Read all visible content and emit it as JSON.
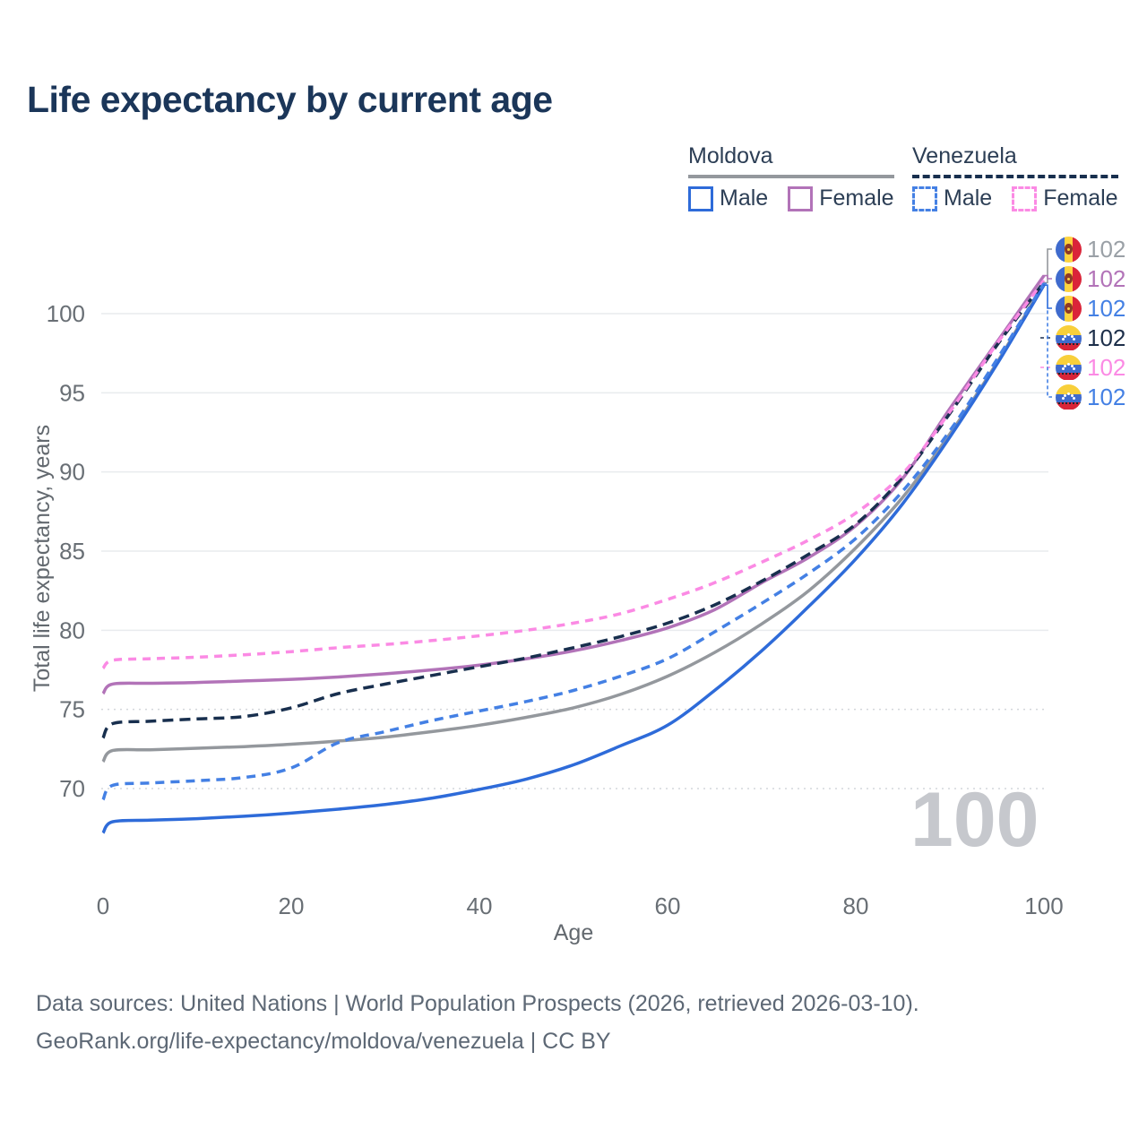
{
  "title": "Life expectancy by current age",
  "legend": {
    "groups": [
      {
        "name": "Moldova",
        "line_style": "solid",
        "underline_color": "#94989d",
        "items": [
          {
            "label": "Male",
            "color": "#2e6bd9",
            "dashed": false
          },
          {
            "label": "Female",
            "color": "#b273b8",
            "dashed": false
          }
        ]
      },
      {
        "name": "Venezuela",
        "line_style": "dashed",
        "underline_color": "#182f4e",
        "items": [
          {
            "label": "Male",
            "color": "#4480e4",
            "dashed": true
          },
          {
            "label": "Female",
            "color": "#fb8ae4",
            "dashed": true
          }
        ]
      }
    ]
  },
  "chart_data": {
    "type": "line",
    "title": "Life expectancy by current age",
    "xlabel": "Age",
    "ylabel": "Total life expectancy, years",
    "xticks": [
      0,
      20,
      40,
      60,
      80,
      100
    ],
    "yticks": [
      70,
      75,
      80,
      85,
      90,
      95,
      100
    ],
    "xlim": [
      0,
      100
    ],
    "ylim": [
      66,
      103
    ],
    "grid": true,
    "age_counter_watermark": "100",
    "x": [
      0,
      1,
      5,
      10,
      15,
      20,
      25,
      30,
      35,
      40,
      45,
      50,
      55,
      60,
      65,
      70,
      75,
      80,
      85,
      90,
      95,
      100
    ],
    "series": [
      {
        "id": "md_total",
        "name": "Moldova Total",
        "country": "Moldova",
        "sex": "both",
        "color": "#94989d",
        "dash": null,
        "flag": "md",
        "values": [
          71.7,
          72.4,
          72.45,
          72.55,
          72.65,
          72.8,
          73.0,
          73.25,
          73.6,
          74.0,
          74.5,
          75.1,
          75.95,
          77.1,
          78.6,
          80.4,
          82.5,
          85.2,
          88.4,
          92.4,
          96.9,
          101.95
        ]
      },
      {
        "id": "md_female",
        "name": "Moldova Female",
        "country": "Moldova",
        "sex": "female",
        "color": "#b273b8",
        "dash": null,
        "flag": "md",
        "values": [
          76.0,
          76.6,
          76.65,
          76.7,
          76.8,
          76.9,
          77.05,
          77.25,
          77.5,
          77.8,
          78.2,
          78.7,
          79.35,
          80.15,
          81.3,
          83.0,
          84.6,
          86.6,
          89.6,
          94.0,
          98.2,
          102.4
        ]
      },
      {
        "id": "md_male",
        "name": "Moldova Male",
        "country": "Moldova",
        "sex": "male",
        "color": "#2e6bd9",
        "dash": null,
        "flag": "md",
        "values": [
          67.2,
          67.9,
          68.0,
          68.1,
          68.25,
          68.45,
          68.7,
          69.0,
          69.4,
          69.95,
          70.6,
          71.5,
          72.7,
          74.0,
          76.2,
          78.7,
          81.5,
          84.5,
          88.0,
          92.2,
          96.8,
          101.8
        ]
      },
      {
        "id": "ve_total",
        "name": "Venezuela Total",
        "country": "Venezuela",
        "sex": "both",
        "color": "#182f4e",
        "dash": [
          12,
          7
        ],
        "flag": "ve",
        "values": [
          73.2,
          74.1,
          74.25,
          74.4,
          74.55,
          75.1,
          76.0,
          76.6,
          77.15,
          77.7,
          78.25,
          78.9,
          79.6,
          80.45,
          81.6,
          83.1,
          84.8,
          86.7,
          89.7,
          93.7,
          98.0,
          102.0
        ]
      },
      {
        "id": "ve_female",
        "name": "Venezuela Female",
        "country": "Venezuela",
        "sex": "female",
        "color": "#fb8ae4",
        "dash": [
          9,
          7
        ],
        "flag": "ve",
        "values": [
          77.6,
          78.1,
          78.2,
          78.3,
          78.45,
          78.65,
          78.9,
          79.1,
          79.35,
          79.65,
          80.0,
          80.45,
          81.05,
          81.95,
          83.0,
          84.3,
          85.7,
          87.4,
          89.9,
          93.8,
          98.1,
          102.1
        ]
      },
      {
        "id": "ve_male",
        "name": "Venezuela Male",
        "country": "Venezuela",
        "sex": "male",
        "color": "#4480e4",
        "dash": [
          10,
          7
        ],
        "flag": "ve",
        "values": [
          69.3,
          70.2,
          70.35,
          70.5,
          70.7,
          71.3,
          72.9,
          73.6,
          74.3,
          74.9,
          75.5,
          76.2,
          77.1,
          78.2,
          79.9,
          81.7,
          83.6,
          85.8,
          88.8,
          92.6,
          97.1,
          101.9
        ]
      }
    ],
    "end_labels": [
      {
        "series": "md_total",
        "text": "102",
        "text_color": "#9aa0a6"
      },
      {
        "series": "md_female",
        "text": "102",
        "text_color": "#b273b8"
      },
      {
        "series": "md_male",
        "text": "102",
        "text_color": "#4480e4"
      },
      {
        "series": "ve_total",
        "text": "102",
        "text_color": "#1d2f4a"
      },
      {
        "series": "ve_female",
        "text": "102",
        "text_color": "#fb8ae4"
      },
      {
        "series": "ve_male",
        "text": "102",
        "text_color": "#4480e4"
      }
    ]
  },
  "flags": {
    "md": {
      "stripes": [
        "#3f6bcd",
        "#fdd33f",
        "#da2439"
      ],
      "emblem_color": "#8d3a26",
      "emblem_dot": "#fdd33f"
    },
    "ve": {
      "stripes": [
        "#f8cf3a",
        "#3f6bcd",
        "#d92438"
      ],
      "star_color": "#ffffff"
    }
  },
  "colors": {
    "title_text": "#1b3659",
    "legend_text": "#2c3e55",
    "tick_text": "#696f75",
    "axis_title_text": "#63696f",
    "gridline": "#e9ebee",
    "gridline_dotted": "#d4d7db",
    "watermark": "#c6c8cd",
    "footer_text": "#5d6875"
  },
  "footer": {
    "line1": "Data sources: United Nations | World Population Prospects (2026, retrieved 2026-03-10).",
    "line2": "GeoRank.org/life-expectancy/moldova/venezuela | CC BY"
  }
}
